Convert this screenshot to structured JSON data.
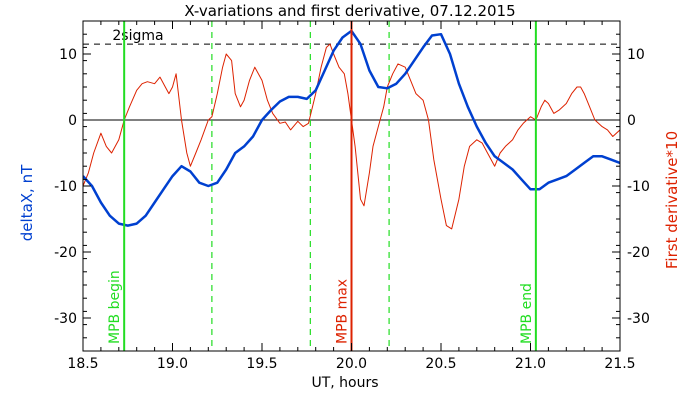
{
  "chart_data": {
    "type": "line",
    "title": "X-variations and first derivative, 07.12.2015",
    "xlabel": "UT, hours",
    "ylabel_left": "deltaX, nT",
    "ylabel_right": "First derivative*10",
    "xlim": [
      18.5,
      21.5
    ],
    "ylim": [
      -35,
      15
    ],
    "x_ticks": [
      18.5,
      19.0,
      19.5,
      20.0,
      20.5,
      21.0,
      21.5
    ],
    "x_tick_labels": [
      "18.5",
      "19.0",
      "19.5",
      "20.0",
      "20.5",
      "21.0",
      "21.5"
    ],
    "y_ticks": [
      10,
      0,
      -10,
      -20,
      -30
    ],
    "y_tick_labels": [
      "10",
      "0",
      "-10",
      "-20",
      "-30"
    ],
    "sigma": {
      "label": "2sigma",
      "value": 11.5
    },
    "zero_line": 0,
    "markers": [
      {
        "label": "MPB begin",
        "x": 18.73,
        "color": "#22dd22",
        "style": "solid",
        "width": 2
      },
      {
        "label": "MPB max",
        "x": 20.0,
        "color": "#dd2200",
        "style": "solid",
        "width": 2
      },
      {
        "label": "MPB end",
        "x": 21.03,
        "color": "#22dd22",
        "style": "solid",
        "width": 2
      }
    ],
    "dashed_markers": [
      {
        "x": 19.22,
        "color": "#22dd22"
      },
      {
        "x": 19.77,
        "color": "#22dd22"
      },
      {
        "x": 20.21,
        "color": "#22dd22"
      }
    ],
    "series": [
      {
        "name": "deltaX, nT",
        "color": "#0040d0",
        "width": 2.5,
        "points": [
          [
            18.5,
            -8.5
          ],
          [
            18.55,
            -10
          ],
          [
            18.6,
            -12.5
          ],
          [
            18.65,
            -14.5
          ],
          [
            18.7,
            -15.7
          ],
          [
            18.75,
            -16
          ],
          [
            18.8,
            -15.7
          ],
          [
            18.85,
            -14.5
          ],
          [
            18.9,
            -12.5
          ],
          [
            18.95,
            -10.5
          ],
          [
            19.0,
            -8.5
          ],
          [
            19.05,
            -7
          ],
          [
            19.1,
            -7.8
          ],
          [
            19.15,
            -9.5
          ],
          [
            19.2,
            -10
          ],
          [
            19.25,
            -9.5
          ],
          [
            19.3,
            -7.5
          ],
          [
            19.35,
            -5
          ],
          [
            19.4,
            -4
          ],
          [
            19.45,
            -2.5
          ],
          [
            19.5,
            0
          ],
          [
            19.55,
            1.5
          ],
          [
            19.6,
            2.8
          ],
          [
            19.65,
            3.5
          ],
          [
            19.7,
            3.5
          ],
          [
            19.75,
            3.2
          ],
          [
            19.8,
            4.5
          ],
          [
            19.85,
            7.5
          ],
          [
            19.9,
            10.5
          ],
          [
            19.95,
            12.5
          ],
          [
            20.0,
            13.5
          ],
          [
            20.05,
            11.5
          ],
          [
            20.1,
            7.5
          ],
          [
            20.15,
            5
          ],
          [
            20.2,
            4.8
          ],
          [
            20.25,
            5.5
          ],
          [
            20.3,
            7
          ],
          [
            20.35,
            9
          ],
          [
            20.4,
            11
          ],
          [
            20.45,
            12.8
          ],
          [
            20.5,
            13
          ],
          [
            20.55,
            10
          ],
          [
            20.6,
            5.5
          ],
          [
            20.65,
            2
          ],
          [
            20.7,
            -1
          ],
          [
            20.75,
            -3.5
          ],
          [
            20.8,
            -5.5
          ],
          [
            20.85,
            -6.5
          ],
          [
            20.9,
            -7.5
          ],
          [
            20.95,
            -9
          ],
          [
            21.0,
            -10.5
          ],
          [
            21.05,
            -10.5
          ],
          [
            21.1,
            -9.5
          ],
          [
            21.15,
            -9
          ],
          [
            21.2,
            -8.5
          ],
          [
            21.25,
            -7.5
          ],
          [
            21.3,
            -6.5
          ],
          [
            21.35,
            -5.5
          ],
          [
            21.4,
            -5.5
          ],
          [
            21.45,
            -6
          ],
          [
            21.5,
            -6.5
          ]
        ]
      },
      {
        "name": "First derivative*10",
        "color": "#dd2200",
        "width": 1,
        "points": [
          [
            18.5,
            -10
          ],
          [
            18.53,
            -8
          ],
          [
            18.56,
            -5
          ],
          [
            18.6,
            -2
          ],
          [
            18.63,
            -4
          ],
          [
            18.66,
            -5
          ],
          [
            18.7,
            -3
          ],
          [
            18.73,
            0
          ],
          [
            18.76,
            2
          ],
          [
            18.8,
            4.5
          ],
          [
            18.83,
            5.5
          ],
          [
            18.86,
            5.8
          ],
          [
            18.9,
            5.5
          ],
          [
            18.93,
            6.5
          ],
          [
            18.96,
            5
          ],
          [
            18.98,
            4
          ],
          [
            19.0,
            5
          ],
          [
            19.02,
            7
          ],
          [
            19.05,
            0
          ],
          [
            19.08,
            -5
          ],
          [
            19.1,
            -7
          ],
          [
            19.13,
            -5
          ],
          [
            19.16,
            -3
          ],
          [
            19.2,
            0
          ],
          [
            19.22,
            0.5
          ],
          [
            19.25,
            4
          ],
          [
            19.28,
            8
          ],
          [
            19.3,
            10
          ],
          [
            19.33,
            9
          ],
          [
            19.35,
            4
          ],
          [
            19.38,
            2
          ],
          [
            19.4,
            3
          ],
          [
            19.43,
            6
          ],
          [
            19.46,
            8
          ],
          [
            19.5,
            6
          ],
          [
            19.53,
            3
          ],
          [
            19.56,
            1
          ],
          [
            19.6,
            -0.5
          ],
          [
            19.63,
            -0.3
          ],
          [
            19.66,
            -1.5
          ],
          [
            19.7,
            -0.2
          ],
          [
            19.73,
            -1
          ],
          [
            19.76,
            -0.5
          ],
          [
            19.8,
            4
          ],
          [
            19.83,
            8
          ],
          [
            19.86,
            11
          ],
          [
            19.88,
            11.5
          ],
          [
            19.9,
            10
          ],
          [
            19.93,
            8
          ],
          [
            19.96,
            7
          ],
          [
            19.98,
            4
          ],
          [
            20.0,
            0
          ],
          [
            20.02,
            -4
          ],
          [
            20.05,
            -12
          ],
          [
            20.07,
            -13
          ],
          [
            20.1,
            -8
          ],
          [
            20.12,
            -4
          ],
          [
            20.15,
            -1
          ],
          [
            20.18,
            2
          ],
          [
            20.2,
            5
          ],
          [
            20.23,
            7
          ],
          [
            20.26,
            8.5
          ],
          [
            20.3,
            8
          ],
          [
            20.33,
            6
          ],
          [
            20.36,
            4
          ],
          [
            20.4,
            3
          ],
          [
            20.43,
            0
          ],
          [
            20.46,
            -6
          ],
          [
            20.5,
            -12
          ],
          [
            20.53,
            -16
          ],
          [
            20.56,
            -16.5
          ],
          [
            20.6,
            -12
          ],
          [
            20.63,
            -7
          ],
          [
            20.66,
            -4
          ],
          [
            20.7,
            -3
          ],
          [
            20.73,
            -3.5
          ],
          [
            20.76,
            -5
          ],
          [
            20.8,
            -7
          ],
          [
            20.83,
            -5
          ],
          [
            20.86,
            -4
          ],
          [
            20.9,
            -3
          ],
          [
            20.93,
            -1.5
          ],
          [
            20.96,
            -0.5
          ],
          [
            21.0,
            0.5
          ],
          [
            21.03,
            0
          ],
          [
            21.06,
            2
          ],
          [
            21.08,
            3
          ],
          [
            21.1,
            2.5
          ],
          [
            21.13,
            1
          ],
          [
            21.16,
            1.5
          ],
          [
            21.2,
            2.5
          ],
          [
            21.23,
            4
          ],
          [
            21.26,
            5
          ],
          [
            21.28,
            5
          ],
          [
            21.3,
            4
          ],
          [
            21.33,
            2
          ],
          [
            21.36,
            0
          ],
          [
            21.4,
            -1
          ],
          [
            21.43,
            -1.5
          ],
          [
            21.46,
            -2.5
          ],
          [
            21.5,
            -1.5
          ]
        ]
      }
    ]
  }
}
